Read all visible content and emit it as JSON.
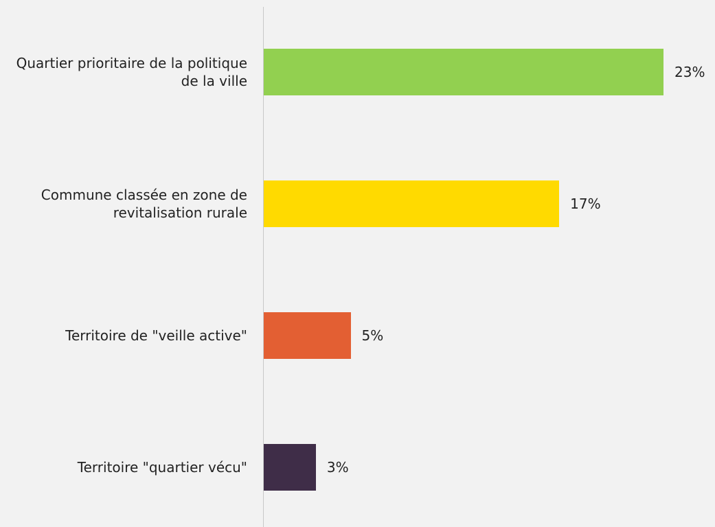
{
  "chart_data": {
    "type": "barh",
    "categories": [
      "Quartier prioritaire de la politique de la ville",
      "Commune classée en zone de revitalisation rurale",
      "Territoire de \"veille active\"",
      "Territoire \"quartier vécu\""
    ],
    "values": [
      23,
      17,
      5,
      3
    ],
    "value_labels": [
      "23%",
      "17%",
      "5%",
      "3%"
    ],
    "colors": [
      "#92d050",
      "#ffda00",
      "#e35f33",
      "#3f2d48"
    ]
  }
}
